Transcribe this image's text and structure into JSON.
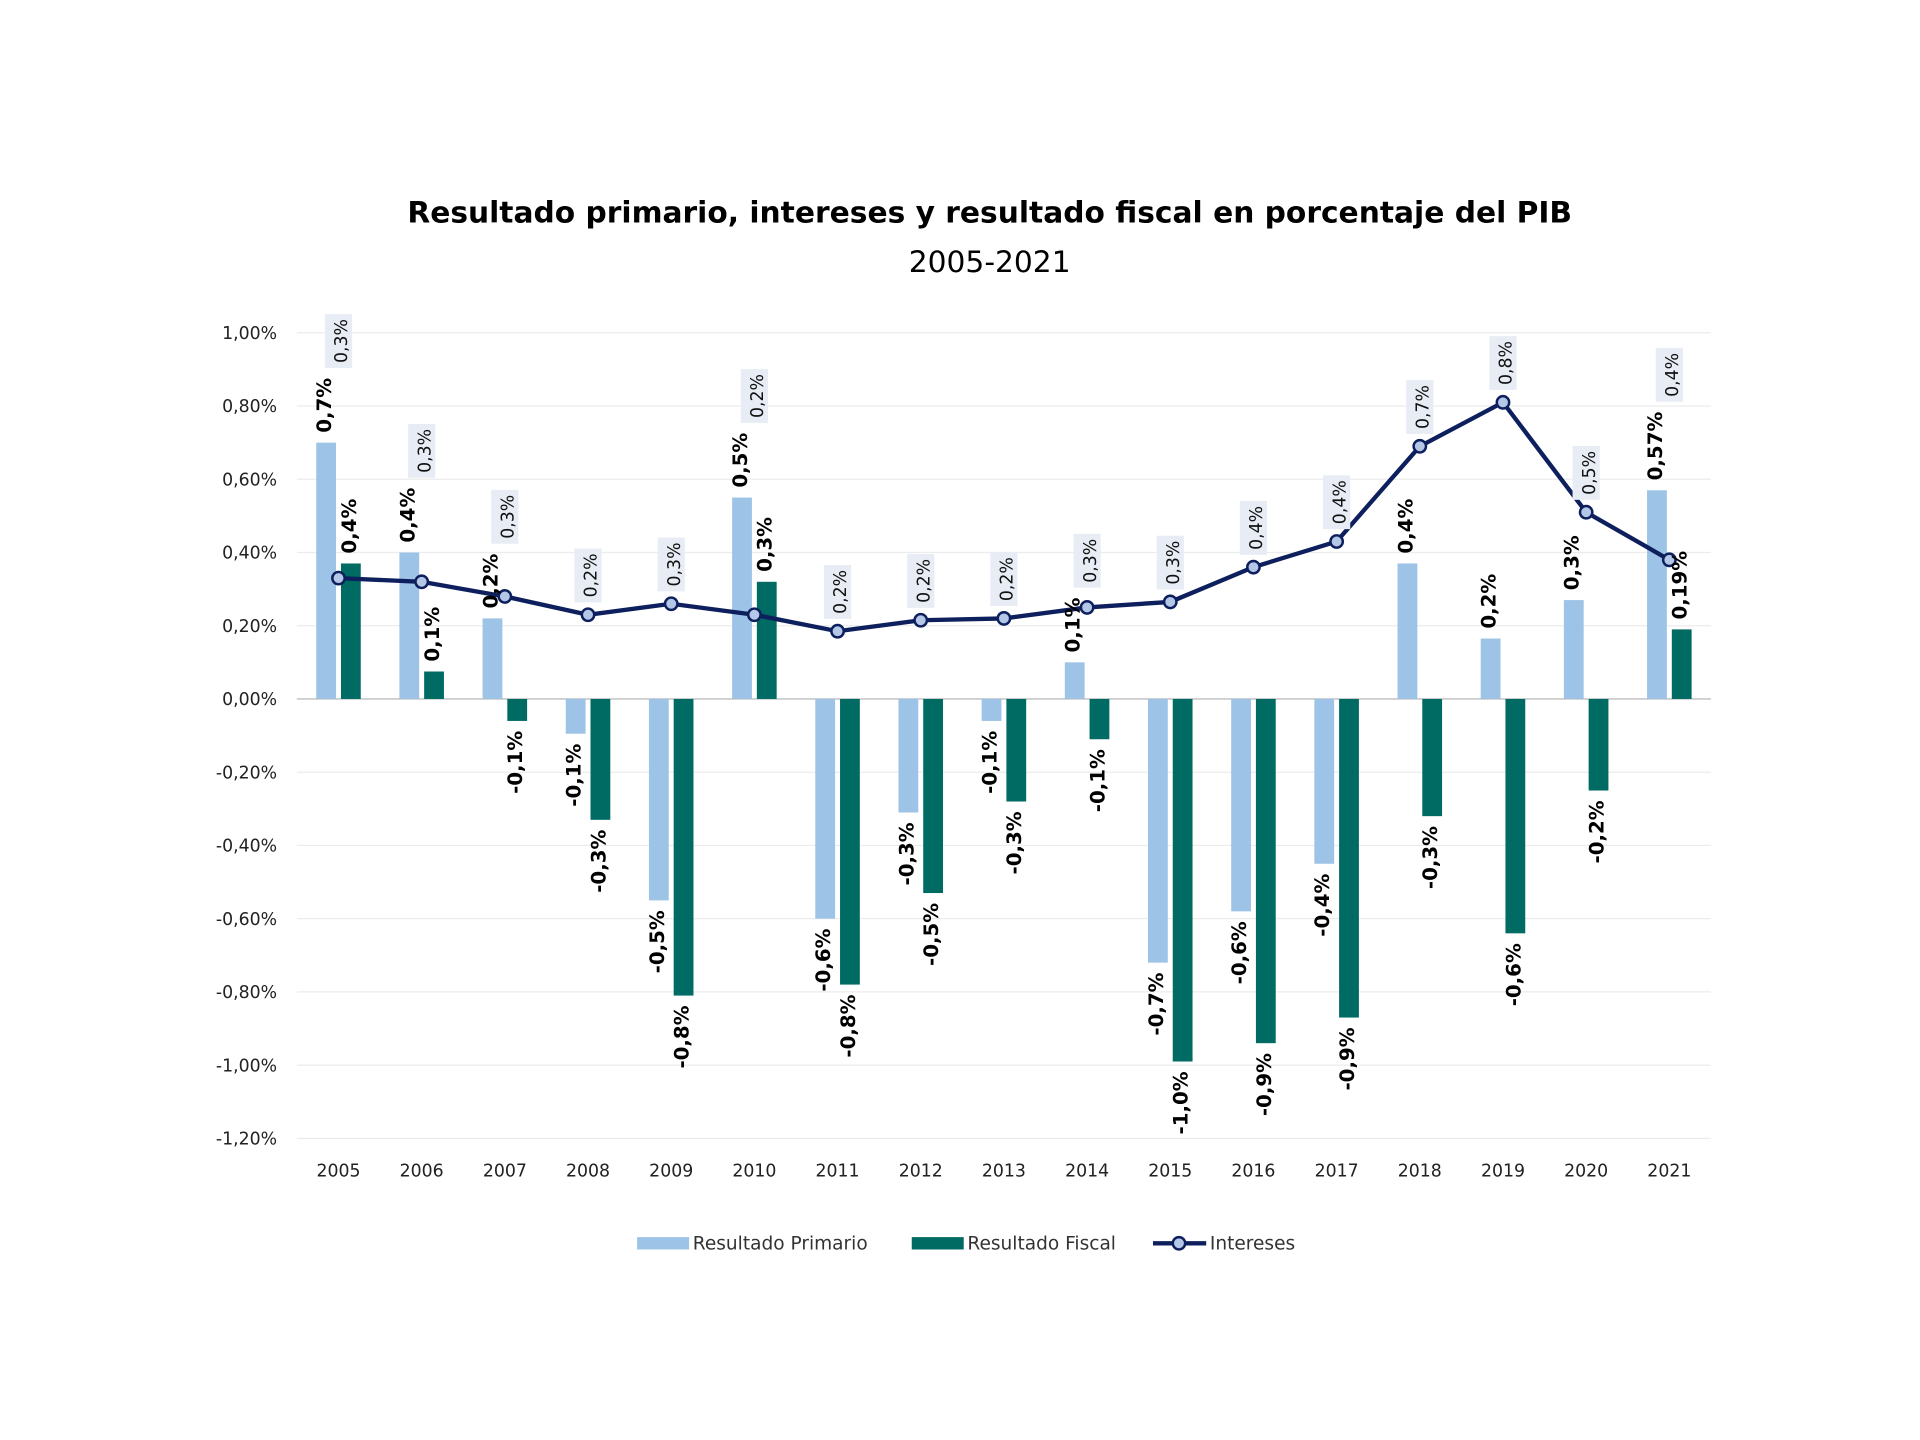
{
  "chart_data": {
    "type": "bar",
    "title": "Resultado primario, intereses y resultado fiscal en porcentaje del PIB",
    "subtitle": "2005-2021",
    "xlabel": "",
    "ylabel": "",
    "ylim": [
      -1.2,
      1.0
    ],
    "yticks": [
      "1,00%",
      "0,80%",
      "0,60%",
      "0,40%",
      "0,20%",
      "0,00%",
      "-0,20%",
      "-0,40%",
      "-0,60%",
      "-0,80%",
      "-1,00%",
      "-1,20%"
    ],
    "grid": true,
    "legend_position": "bottom",
    "categories": [
      "2005",
      "2006",
      "2007",
      "2008",
      "2009",
      "2010",
      "2011",
      "2012",
      "2013",
      "2014",
      "2015",
      "2016",
      "2017",
      "2018",
      "2019",
      "2020",
      "2021"
    ],
    "series": [
      {
        "name": "Resultado Primario",
        "kind": "bar",
        "color": "#9dc3e6",
        "values": [
          0.7,
          0.4,
          0.22,
          -0.095,
          -0.55,
          0.55,
          -0.6,
          -0.31,
          -0.06,
          0.1,
          -0.72,
          -0.58,
          -0.45,
          0.37,
          0.165,
          0.27,
          0.57
        ],
        "labels": [
          "0,7%",
          "0,4%",
          "0,2%",
          "-0,1%",
          "-0,5%",
          "0,5%",
          "-0,6%",
          "-0,3%",
          "-0,1%",
          "0,1%",
          "-0,7%",
          "-0,6%",
          "-0,4%",
          "0,4%",
          "0,2%",
          "0,3%",
          "0,57%"
        ]
      },
      {
        "name": "Resultado Fiscal",
        "kind": "bar",
        "color": "#006b62",
        "values": [
          0.37,
          0.075,
          -0.06,
          -0.33,
          -0.81,
          0.32,
          -0.78,
          -0.53,
          -0.28,
          -0.11,
          -0.99,
          -0.94,
          -0.87,
          -0.32,
          -0.64,
          -0.25,
          0.19
        ],
        "labels": [
          "0,4%",
          "0,1%",
          "-0,1%",
          "-0,3%",
          "-0,8%",
          "0,3%",
          "-0,8%",
          "-0,5%",
          "-0,3%",
          "-0,1%",
          "-1,0%",
          "-0,9%",
          "-0,9%",
          "-0,3%",
          "-0,6%",
          "-0,2%",
          "0,19%"
        ]
      },
      {
        "name": "Intereses",
        "kind": "line",
        "color": "#0d1f5c",
        "values": [
          0.33,
          0.32,
          0.28,
          0.23,
          0.26,
          0.23,
          0.185,
          0.215,
          0.22,
          0.25,
          0.265,
          0.36,
          0.43,
          0.69,
          0.81,
          0.51,
          0.38
        ],
        "labels": [
          "0,3%",
          "0,3%",
          "0,3%",
          "0,2%",
          "0,3%",
          "0,2%",
          "0,2%",
          "0,2%",
          "0,2%",
          "0,3%",
          "0,3%",
          "0,4%",
          "0,4%",
          "0,7%",
          "0,8%",
          "0,5%",
          "0,4%"
        ]
      }
    ]
  }
}
